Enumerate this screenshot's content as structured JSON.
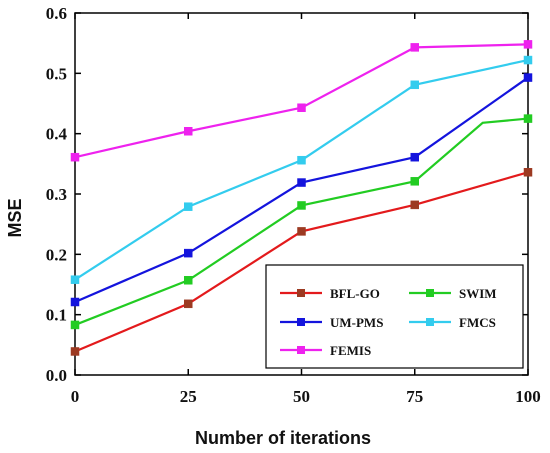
{
  "chart_data": {
    "type": "line",
    "xlabel": "Number  of iterations",
    "ylabel": "MSE",
    "xlim": [
      0,
      100
    ],
    "ylim": [
      0,
      0.6
    ],
    "xticks": [
      0,
      25,
      50,
      75,
      100
    ],
    "yticks": [
      0.0,
      0.1,
      0.2,
      0.3,
      0.4,
      0.5,
      0.6
    ],
    "xtick_labels": [
      "0",
      "25",
      "50",
      "75",
      "100"
    ],
    "ytick_labels": [
      "0.0",
      "0.1",
      "0.2",
      "0.3",
      "0.4",
      "0.5",
      "0.6"
    ],
    "grid": false,
    "legend_position": "bottom-right",
    "series": [
      {
        "name": "BFL-GO",
        "color": "#e31a1c",
        "marker_color": "#9c3a22",
        "x": [
          0,
          25,
          50,
          75,
          100
        ],
        "y": [
          0.039,
          0.118,
          0.238,
          0.282,
          0.336
        ]
      },
      {
        "name": "SWIM",
        "color": "#22cc22",
        "marker_color": "#22cc22",
        "x": [
          0,
          25,
          50,
          75,
          90,
          100
        ],
        "y": [
          0.083,
          0.157,
          0.281,
          0.321,
          0.418,
          0.425
        ]
      },
      {
        "name": "UM-PMS",
        "color": "#1414dd",
        "marker_color": "#1414dd",
        "x": [
          0,
          25,
          50,
          75,
          100
        ],
        "y": [
          0.121,
          0.202,
          0.319,
          0.361,
          0.493
        ]
      },
      {
        "name": "FMCS",
        "color": "#33ccee",
        "marker_color": "#33ccee",
        "x": [
          0,
          25,
          50,
          75,
          100
        ],
        "y": [
          0.158,
          0.279,
          0.356,
          0.481,
          0.522
        ]
      },
      {
        "name": "FEMIS",
        "color": "#ee22ee",
        "marker_color": "#ee22ee",
        "x": [
          0,
          25,
          50,
          75,
          100
        ],
        "y": [
          0.361,
          0.404,
          0.443,
          0.543,
          0.548
        ]
      }
    ]
  }
}
